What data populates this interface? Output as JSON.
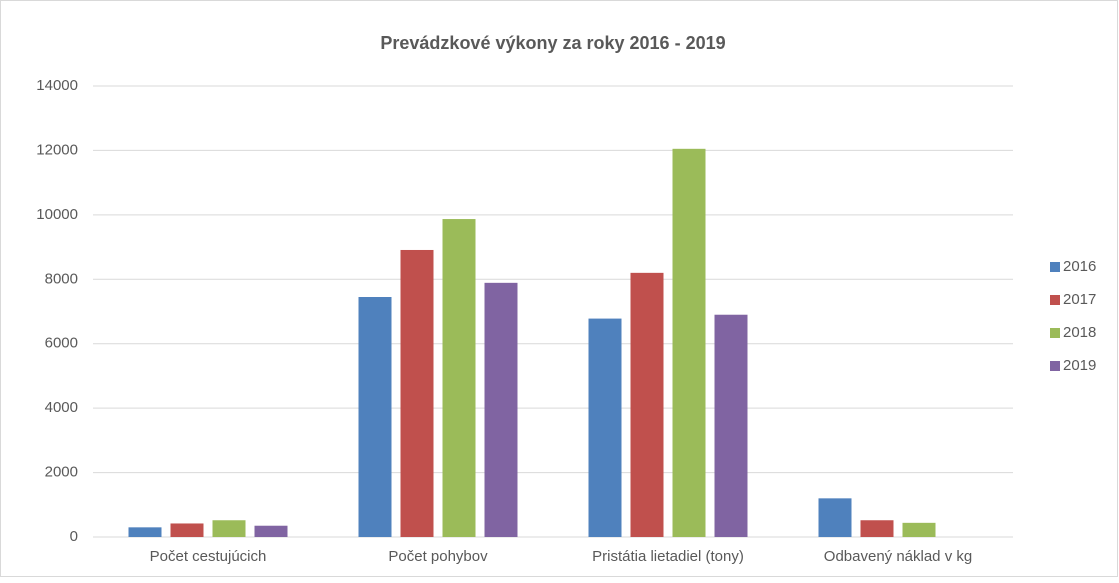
{
  "chart_data": {
    "type": "bar",
    "title": "Prevádzkové výkony za roky 2016 - 2019",
    "categories": [
      "Počet cestujúcich",
      "Počet pohybov",
      "Pristátia lietadiel (tony)",
      "Odbavený náklad v kg"
    ],
    "series": [
      {
        "name": "2016",
        "color": "#4f81bd",
        "values": [
          300,
          7450,
          6780,
          1200
        ]
      },
      {
        "name": "2017",
        "color": "#c0504d",
        "values": [
          420,
          8910,
          8200,
          520
        ]
      },
      {
        "name": "2018",
        "color": "#9bbb59",
        "values": [
          520,
          9870,
          12050,
          440
        ]
      },
      {
        "name": "2019",
        "color": "#8064a2",
        "values": [
          350,
          7890,
          6900,
          null
        ]
      }
    ],
    "ylim": [
      0,
      14000
    ],
    "yticks": [
      0,
      2000,
      4000,
      6000,
      8000,
      10000,
      12000,
      14000
    ],
    "grid": true,
    "legend": "right"
  }
}
